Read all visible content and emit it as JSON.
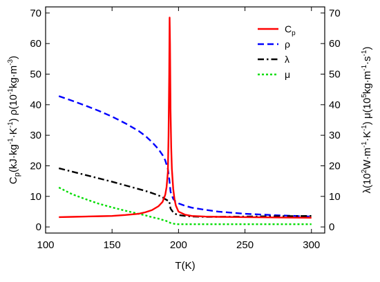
{
  "chart_data": {
    "type": "line",
    "xlabel": "T(K)",
    "ylabel_left": [
      "C",
      "p",
      "(kJ·kg",
      "-1",
      "·K",
      "-1",
      ")",
      "   ρ(10",
      "-1",
      "kg·m",
      "-3",
      ")"
    ],
    "ylabel_right": [
      "λ(10",
      "2",
      "W·m",
      "-1",
      "·K",
      "-1",
      ")   μ(10",
      "5",
      "kg·m",
      "-1",
      "·s",
      "-1",
      ")"
    ],
    "xlim": [
      100,
      310
    ],
    "ylim": [
      -2,
      72
    ],
    "x_ticks": [
      "100",
      "150",
      "200",
      "250",
      "300"
    ],
    "x_tick_values": [
      100,
      150,
      200,
      250,
      300
    ],
    "y_ticks": [
      "0",
      "10",
      "20",
      "30",
      "40",
      "50",
      "60",
      "70"
    ],
    "y_tick_values": [
      0,
      10,
      20,
      30,
      40,
      50,
      60,
      70
    ],
    "grid": false,
    "legend_position": "top-right",
    "series": [
      {
        "name": "Cp",
        "legend_main": "C",
        "legend_sub": "p",
        "color": "#ff0000",
        "dash": "solid",
        "x": [
          110,
          120,
          130,
          140,
          150,
          160,
          170,
          175,
          180,
          185,
          188,
          190,
          191,
          192,
          192.5,
          193,
          193.3,
          193.6,
          194,
          194.5,
          195,
          196,
          197,
          198,
          200,
          205,
          210,
          220,
          230,
          250,
          275,
          300
        ],
        "values": [
          3.2,
          3.3,
          3.4,
          3.5,
          3.6,
          3.9,
          4.3,
          4.8,
          5.5,
          6.8,
          8.2,
          10.5,
          13,
          18,
          30,
          50,
          68.5,
          60,
          38,
          26,
          19,
          12.5,
          9,
          7,
          5,
          4,
          3.6,
          3.4,
          3.3,
          3.2,
          3.1,
          3.0
        ]
      },
      {
        "name": "ρ",
        "legend_main": "ρ",
        "legend_sub": "",
        "color": "#0000ff",
        "dash": "dash",
        "x": [
          110,
          120,
          130,
          140,
          150,
          160,
          170,
          175,
          180,
          185,
          188,
          190,
          192,
          193,
          194,
          196,
          198,
          200,
          205,
          210,
          220,
          230,
          250,
          275,
          300
        ],
        "values": [
          42.8,
          41.3,
          39.7,
          38.0,
          36.1,
          33.9,
          31.4,
          29.8,
          27.8,
          25.4,
          23.5,
          21.8,
          19.0,
          15.8,
          11.5,
          9.2,
          8.2,
          7.7,
          6.9,
          6.3,
          5.6,
          5.0,
          4.3,
          3.8,
          3.4
        ]
      },
      {
        "name": "λ",
        "legend_main": "λ",
        "legend_sub": "",
        "color": "#000000",
        "dash": "dashdot",
        "x": [
          110,
          120,
          130,
          140,
          150,
          160,
          170,
          175,
          180,
          185,
          188,
          190,
          192,
          193,
          194,
          196,
          198,
          200,
          205,
          210,
          220,
          230,
          250,
          275,
          300
        ],
        "values": [
          19.2,
          18.1,
          17.0,
          15.9,
          14.8,
          13.6,
          12.4,
          11.8,
          11.1,
          10.3,
          9.7,
          9.1,
          8.6,
          8.5,
          6.0,
          4.8,
          4.2,
          3.9,
          3.6,
          3.4,
          3.3,
          3.3,
          3.4,
          3.5,
          3.6
        ]
      },
      {
        "name": "μ",
        "legend_main": "μ",
        "legend_sub": "",
        "color": "#00dd00",
        "dash": "dot",
        "x": [
          110,
          120,
          130,
          140,
          150,
          160,
          170,
          175,
          180,
          185,
          188,
          190,
          192,
          194,
          196,
          198,
          200,
          205,
          210,
          220,
          230,
          250,
          275,
          300
        ],
        "values": [
          12.9,
          10.7,
          9.1,
          7.6,
          6.4,
          5.3,
          4.3,
          3.8,
          3.2,
          2.7,
          2.3,
          2.1,
          1.7,
          1.3,
          1.1,
          0.9,
          0.9,
          0.9,
          0.9,
          0.9,
          0.9,
          0.9,
          0.9,
          0.9
        ]
      }
    ]
  }
}
